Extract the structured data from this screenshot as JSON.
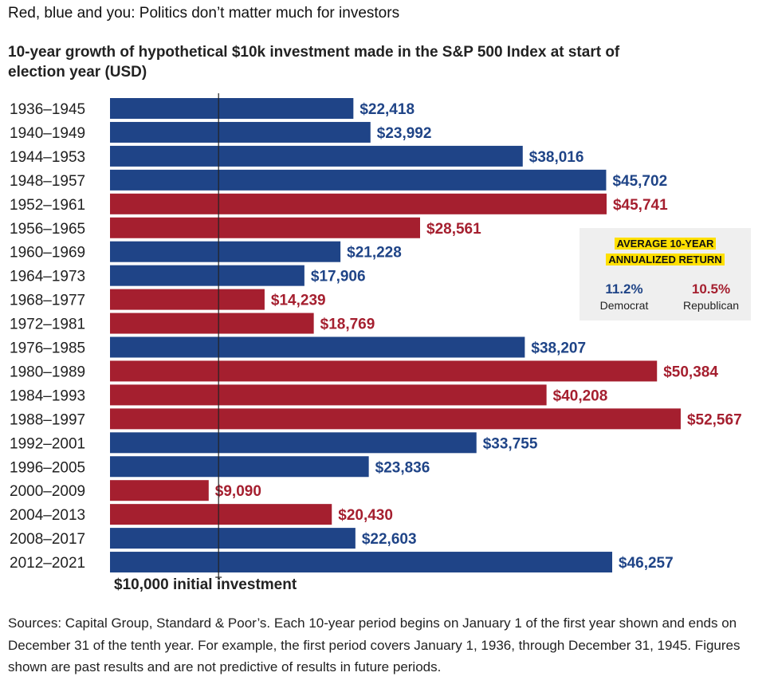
{
  "headline": "Red, blue and you: Politics don’t matter much for investors",
  "subtitle": "10-year growth of hypothetical $10k investment made in the S&P 500 Index at start of election year (USD)",
  "colors": {
    "democrat": "#1f4487",
    "republican": "#a51f2f"
  },
  "legend": {
    "title_line1": "AVERAGE 10-YEAR",
    "title_line2": "ANNUALIZED RETURN",
    "democrat_value": "11.2%",
    "democrat_label": "Democrat",
    "republican_value": "10.5%",
    "republican_label": "Republican"
  },
  "baseline_label": "$10,000 initial investment",
  "sources": "Sources: Capital Group, Standard & Poor’s. Each 10-year period begins on January 1 of the first year shown and ends on December 31 of the tenth year. For example, the first period covers January 1, 1936, through December 31, 1945. Figures shown are past results and are not predictive of results in future periods.",
  "chart_data": {
    "type": "bar",
    "orientation": "horizontal",
    "baseline": 10000,
    "categories": [
      "1936–1945",
      "1940–1949",
      "1944–1953",
      "1948–1957",
      "1952–1961",
      "1956–1965",
      "1960–1969",
      "1964–1973",
      "1968–1977",
      "1972–1981",
      "1976–1985",
      "1980–1989",
      "1984–1993",
      "1988–1997",
      "1992–2001",
      "1996–2005",
      "2000–2009",
      "2004–2013",
      "2008–2017",
      "2012–2021"
    ],
    "values": [
      22418,
      23992,
      38016,
      45702,
      45741,
      28561,
      21228,
      17906,
      14239,
      18769,
      38207,
      50384,
      40208,
      52567,
      33755,
      23836,
      9090,
      20430,
      22603,
      46257
    ],
    "labels": [
      "$22,418",
      "$23,992",
      "$38,016",
      "$45,702",
      "$45,741",
      "$28,561",
      "$21,228",
      "$17,906",
      "$14,239",
      "$18,769",
      "$38,207",
      "$50,384",
      "$40,208",
      "$52,567",
      "$33,755",
      "$23,836",
      "$9,090",
      "$20,430",
      "$22,603",
      "$46,257"
    ],
    "party": [
      "democrat",
      "democrat",
      "democrat",
      "democrat",
      "republican",
      "republican",
      "democrat",
      "democrat",
      "republican",
      "republican",
      "democrat",
      "republican",
      "republican",
      "republican",
      "democrat",
      "democrat",
      "republican",
      "republican",
      "democrat",
      "democrat"
    ],
    "title": "",
    "xlabel": "",
    "ylabel": ""
  }
}
